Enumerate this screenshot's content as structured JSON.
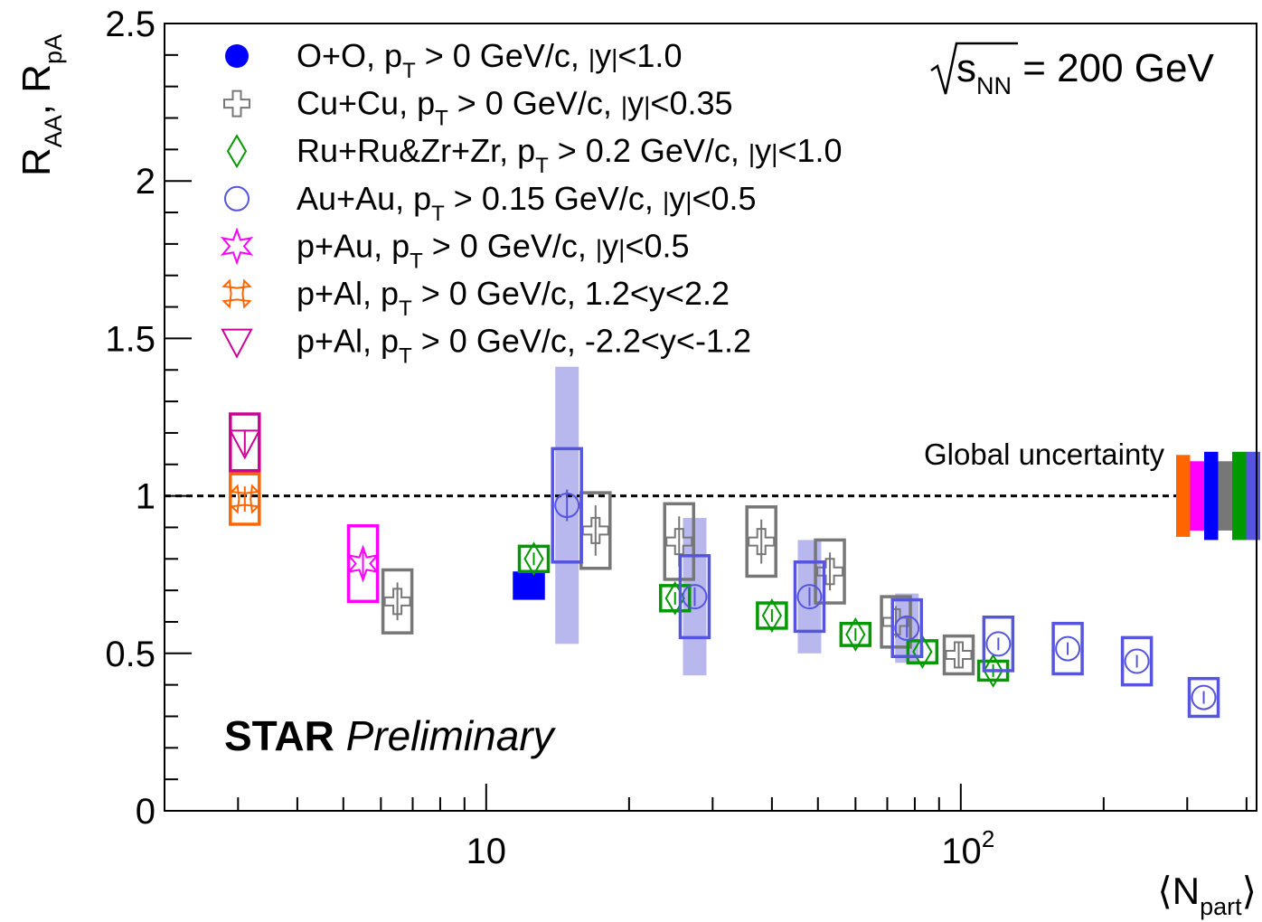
{
  "chart_data": {
    "type": "scatter",
    "x_scale": "log",
    "xlim": [
      2.1,
      420
    ],
    "ylim": [
      0,
      2.5
    ],
    "grid": false,
    "legend_position": "top-left",
    "ylabel": {
      "main1": "R",
      "sub1": "AA",
      "sep": ", ",
      "main2": "R",
      "sub2": "pA"
    },
    "xlabel": {
      "open": "⟨N",
      "sub": "part",
      "close": "⟩"
    },
    "x_ticks": [
      {
        "value": 10,
        "label": "10"
      },
      {
        "value": 100,
        "label": "10",
        "sup": "2"
      }
    ],
    "y_ticks": [
      {
        "value": 0,
        "label": "0"
      },
      {
        "value": 0.5,
        "label": "0.5"
      },
      {
        "value": 1,
        "label": "1"
      },
      {
        "value": 1.5,
        "label": "1.5"
      },
      {
        "value": 2,
        "label": "2"
      },
      {
        "value": 2.5,
        "label": "2.5"
      }
    ],
    "energy_label": {
      "main": "s",
      "sub": "NN",
      "rest": " = 200 GeV"
    },
    "reference_line": 1,
    "global_uncertainty": {
      "label": "Global uncertainty",
      "bands": [
        {
          "color": "#ff6600",
          "lo": 0.87,
          "hi": 1.13
        },
        {
          "color": "#ff00ff",
          "lo": 0.89,
          "hi": 1.11
        },
        {
          "color": "#0000ff",
          "lo": 0.86,
          "hi": 1.14
        },
        {
          "color": "#777777",
          "lo": 0.89,
          "hi": 1.11
        },
        {
          "color": "#009900",
          "lo": 0.86,
          "hi": 1.14
        },
        {
          "color": "#5555dd",
          "lo": 0.86,
          "hi": 1.14
        }
      ]
    },
    "watermark": {
      "bold": "STAR",
      "italic": "Preliminary"
    },
    "series": [
      {
        "key": "oo",
        "marker": "filled-circle",
        "color": "#0000ff",
        "legend": {
          "a": "O+O, p",
          "sub": "T",
          "b": " > 0 GeV/c, ",
          "y": "y",
          "c": "<1.0"
        },
        "points": [
          {
            "x": 12.3,
            "y": 0.715,
            "sys": 0.04,
            "stat": 0.02
          }
        ]
      },
      {
        "key": "cucu",
        "marker": "open-cross",
        "color": "#777777",
        "legend": {
          "a": "Cu+Cu, p",
          "sub": "T",
          "b": " > 0 GeV/c, ",
          "y": "y",
          "c": "<0.35"
        },
        "points": [
          {
            "x": 6.5,
            "y": 0.665,
            "sys": 0.1,
            "stat": 0.06
          },
          {
            "x": 17.0,
            "y": 0.89,
            "sys": 0.12,
            "stat": 0.08
          },
          {
            "x": 25.5,
            "y": 0.855,
            "sys": 0.12,
            "stat": 0.08
          },
          {
            "x": 38.0,
            "y": 0.855,
            "sys": 0.11,
            "stat": 0.07
          },
          {
            "x": 53.0,
            "y": 0.76,
            "sys": 0.1,
            "stat": 0.06
          },
          {
            "x": 73.0,
            "y": 0.6,
            "sys": 0.08,
            "stat": 0.05
          },
          {
            "x": 99.0,
            "y": 0.495,
            "sys": 0.06,
            "stat": 0.04
          }
        ]
      },
      {
        "key": "isobar",
        "marker": "open-diamond",
        "color": "#009900",
        "legend": {
          "a": "Ru+Ru&Zr+Zr, p",
          "sub": "T",
          "b": " > 0.2 GeV/c, ",
          "y": "y",
          "c": "<1.0"
        },
        "points": [
          {
            "x": 12.6,
            "y": 0.8,
            "sys": 0.04,
            "stat": 0.02
          },
          {
            "x": 25.0,
            "y": 0.675,
            "sys": 0.04,
            "stat": 0.02
          },
          {
            "x": 40.0,
            "y": 0.62,
            "sys": 0.04,
            "stat": 0.02
          },
          {
            "x": 60.0,
            "y": 0.56,
            "sys": 0.035,
            "stat": 0.02
          },
          {
            "x": 83.0,
            "y": 0.505,
            "sys": 0.035,
            "stat": 0.02
          },
          {
            "x": 117.0,
            "y": 0.445,
            "sys": 0.03,
            "stat": 0.02
          }
        ]
      },
      {
        "key": "auau",
        "marker": "open-circle",
        "color": "#5555dd",
        "legend": {
          "a": "Au+Au, p",
          "sub": "T",
          "b": " > 0.15 GeV/c, ",
          "y": "y",
          "c": "<0.5"
        },
        "points": [
          {
            "x": 14.8,
            "y": 0.97,
            "sys": 0.18,
            "stat": 0.05,
            "band": 0.44
          },
          {
            "x": 27.5,
            "y": 0.68,
            "sys": 0.13,
            "stat": 0.03,
            "band": 0.25
          },
          {
            "x": 48.0,
            "y": 0.68,
            "sys": 0.11,
            "stat": 0.03,
            "band": 0.18
          },
          {
            "x": 77.0,
            "y": 0.58,
            "sys": 0.09,
            "stat": 0.03,
            "band": 0.11
          },
          {
            "x": 120.0,
            "y": 0.53,
            "sys": 0.085,
            "stat": 0.02
          },
          {
            "x": 168.0,
            "y": 0.515,
            "sys": 0.08,
            "stat": 0.02
          },
          {
            "x": 235.0,
            "y": 0.475,
            "sys": 0.075,
            "stat": 0.02
          },
          {
            "x": 325.0,
            "y": 0.36,
            "sys": 0.06,
            "stat": 0.02
          }
        ]
      },
      {
        "key": "pau",
        "marker": "open-star",
        "color": "#ff00ff",
        "legend": {
          "a": "p+Au, p",
          "sub": "T",
          "b": " > 0 GeV/c, ",
          "y": "y",
          "c": "<0.5"
        },
        "points": [
          {
            "x": 5.5,
            "y": 0.785,
            "sys": 0.12,
            "stat": 0.04
          }
        ]
      },
      {
        "key": "pal-fwd",
        "marker": "open-x",
        "color": "#ff6600",
        "legend": {
          "a": "p+Al, p",
          "sub": "T",
          "b": " > 0 GeV/c, 1.2<y<2.2"
        },
        "points": [
          {
            "x": 3.1,
            "y": 0.99,
            "sys": 0.08,
            "stat": 0.04
          }
        ]
      },
      {
        "key": "pal-bwd",
        "marker": "open-triangle-down",
        "color": "#cc0099",
        "legend": {
          "a": "p+Al, p",
          "sub": "T",
          "b": " > 0 GeV/c, -2.2<y<-1.2"
        },
        "points": [
          {
            "x": 3.1,
            "y": 1.17,
            "sys": 0.09,
            "stat": 0.04
          }
        ]
      }
    ]
  }
}
